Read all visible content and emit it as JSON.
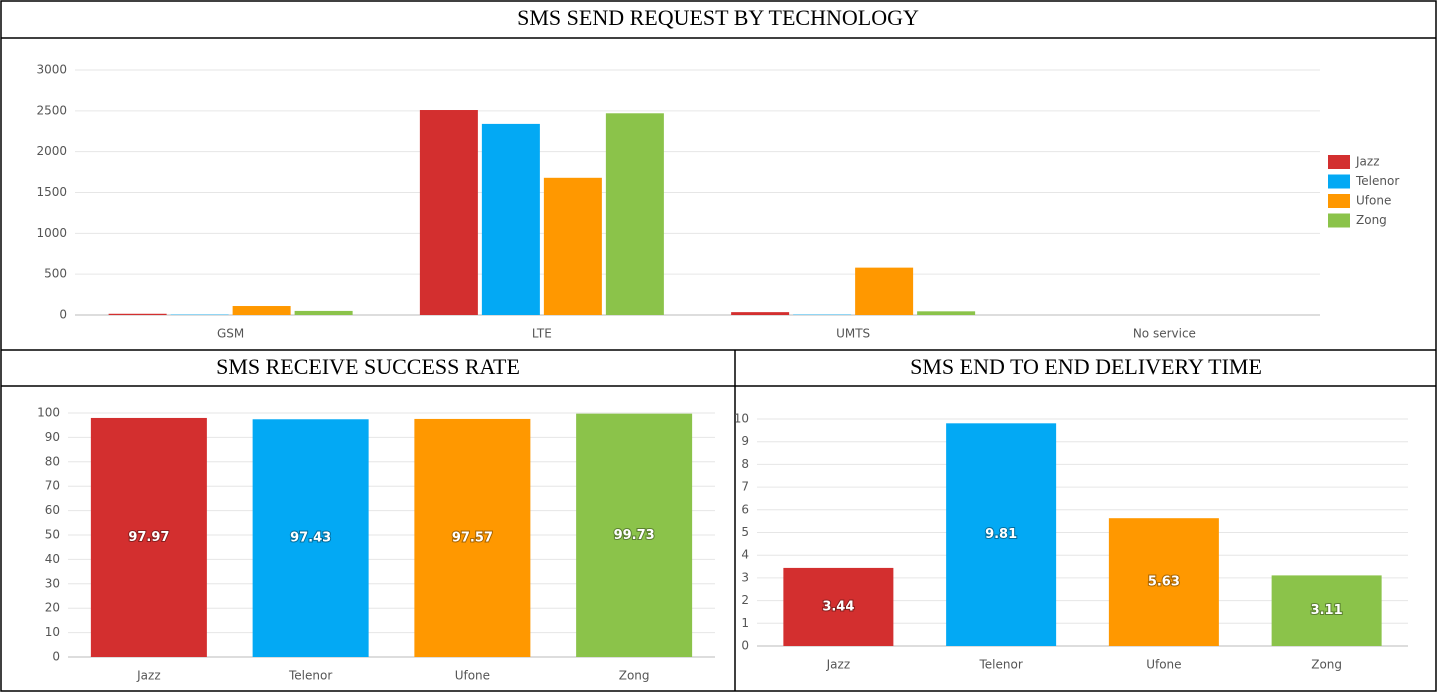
{
  "chart_data": [
    {
      "type": "bar",
      "title": "SMS SEND REQUEST BY TECHNOLOGY",
      "categories": [
        "GSM",
        "LTE",
        "UMTS",
        "No service"
      ],
      "series": [
        {
          "name": "Jazz",
          "color": "#d32f2f",
          "values": [
            15,
            2510,
            35,
            0
          ]
        },
        {
          "name": "Telenor",
          "color": "#03a9f4",
          "values": [
            5,
            2340,
            5,
            0
          ]
        },
        {
          "name": "Ufone",
          "color": "#ff9800",
          "values": [
            110,
            1680,
            580,
            0
          ]
        },
        {
          "name": "Zong",
          "color": "#8bc34a",
          "values": [
            50,
            2470,
            45,
            0
          ]
        }
      ],
      "ylim": [
        0,
        3000
      ],
      "yticks": [
        0,
        500,
        1000,
        1500,
        2000,
        2500,
        3000
      ],
      "grid": true,
      "legend": "right"
    },
    {
      "type": "bar",
      "title": "SMS RECEIVE SUCCESS RATE",
      "categories": [
        "Jazz",
        "Telenor",
        "Ufone",
        "Zong"
      ],
      "values": [
        97.97,
        97.43,
        97.57,
        99.73
      ],
      "colors": [
        "#d32f2f",
        "#03a9f4",
        "#ff9800",
        "#8bc34a"
      ],
      "ylim": [
        0,
        100
      ],
      "yticks": [
        0,
        10,
        20,
        30,
        40,
        50,
        60,
        70,
        80,
        90,
        100
      ],
      "grid": true
    },
    {
      "type": "bar",
      "title": "SMS END TO END DELIVERY TIME",
      "categories": [
        "Jazz",
        "Telenor",
        "Ufone",
        "Zong"
      ],
      "values": [
        3.44,
        9.81,
        5.63,
        3.11
      ],
      "colors": [
        "#d32f2f",
        "#03a9f4",
        "#ff9800",
        "#8bc34a"
      ],
      "ylim": [
        0,
        10
      ],
      "yticks": [
        0,
        1,
        2,
        3,
        4,
        5,
        6,
        7,
        8,
        9,
        10
      ],
      "grid": true
    }
  ]
}
